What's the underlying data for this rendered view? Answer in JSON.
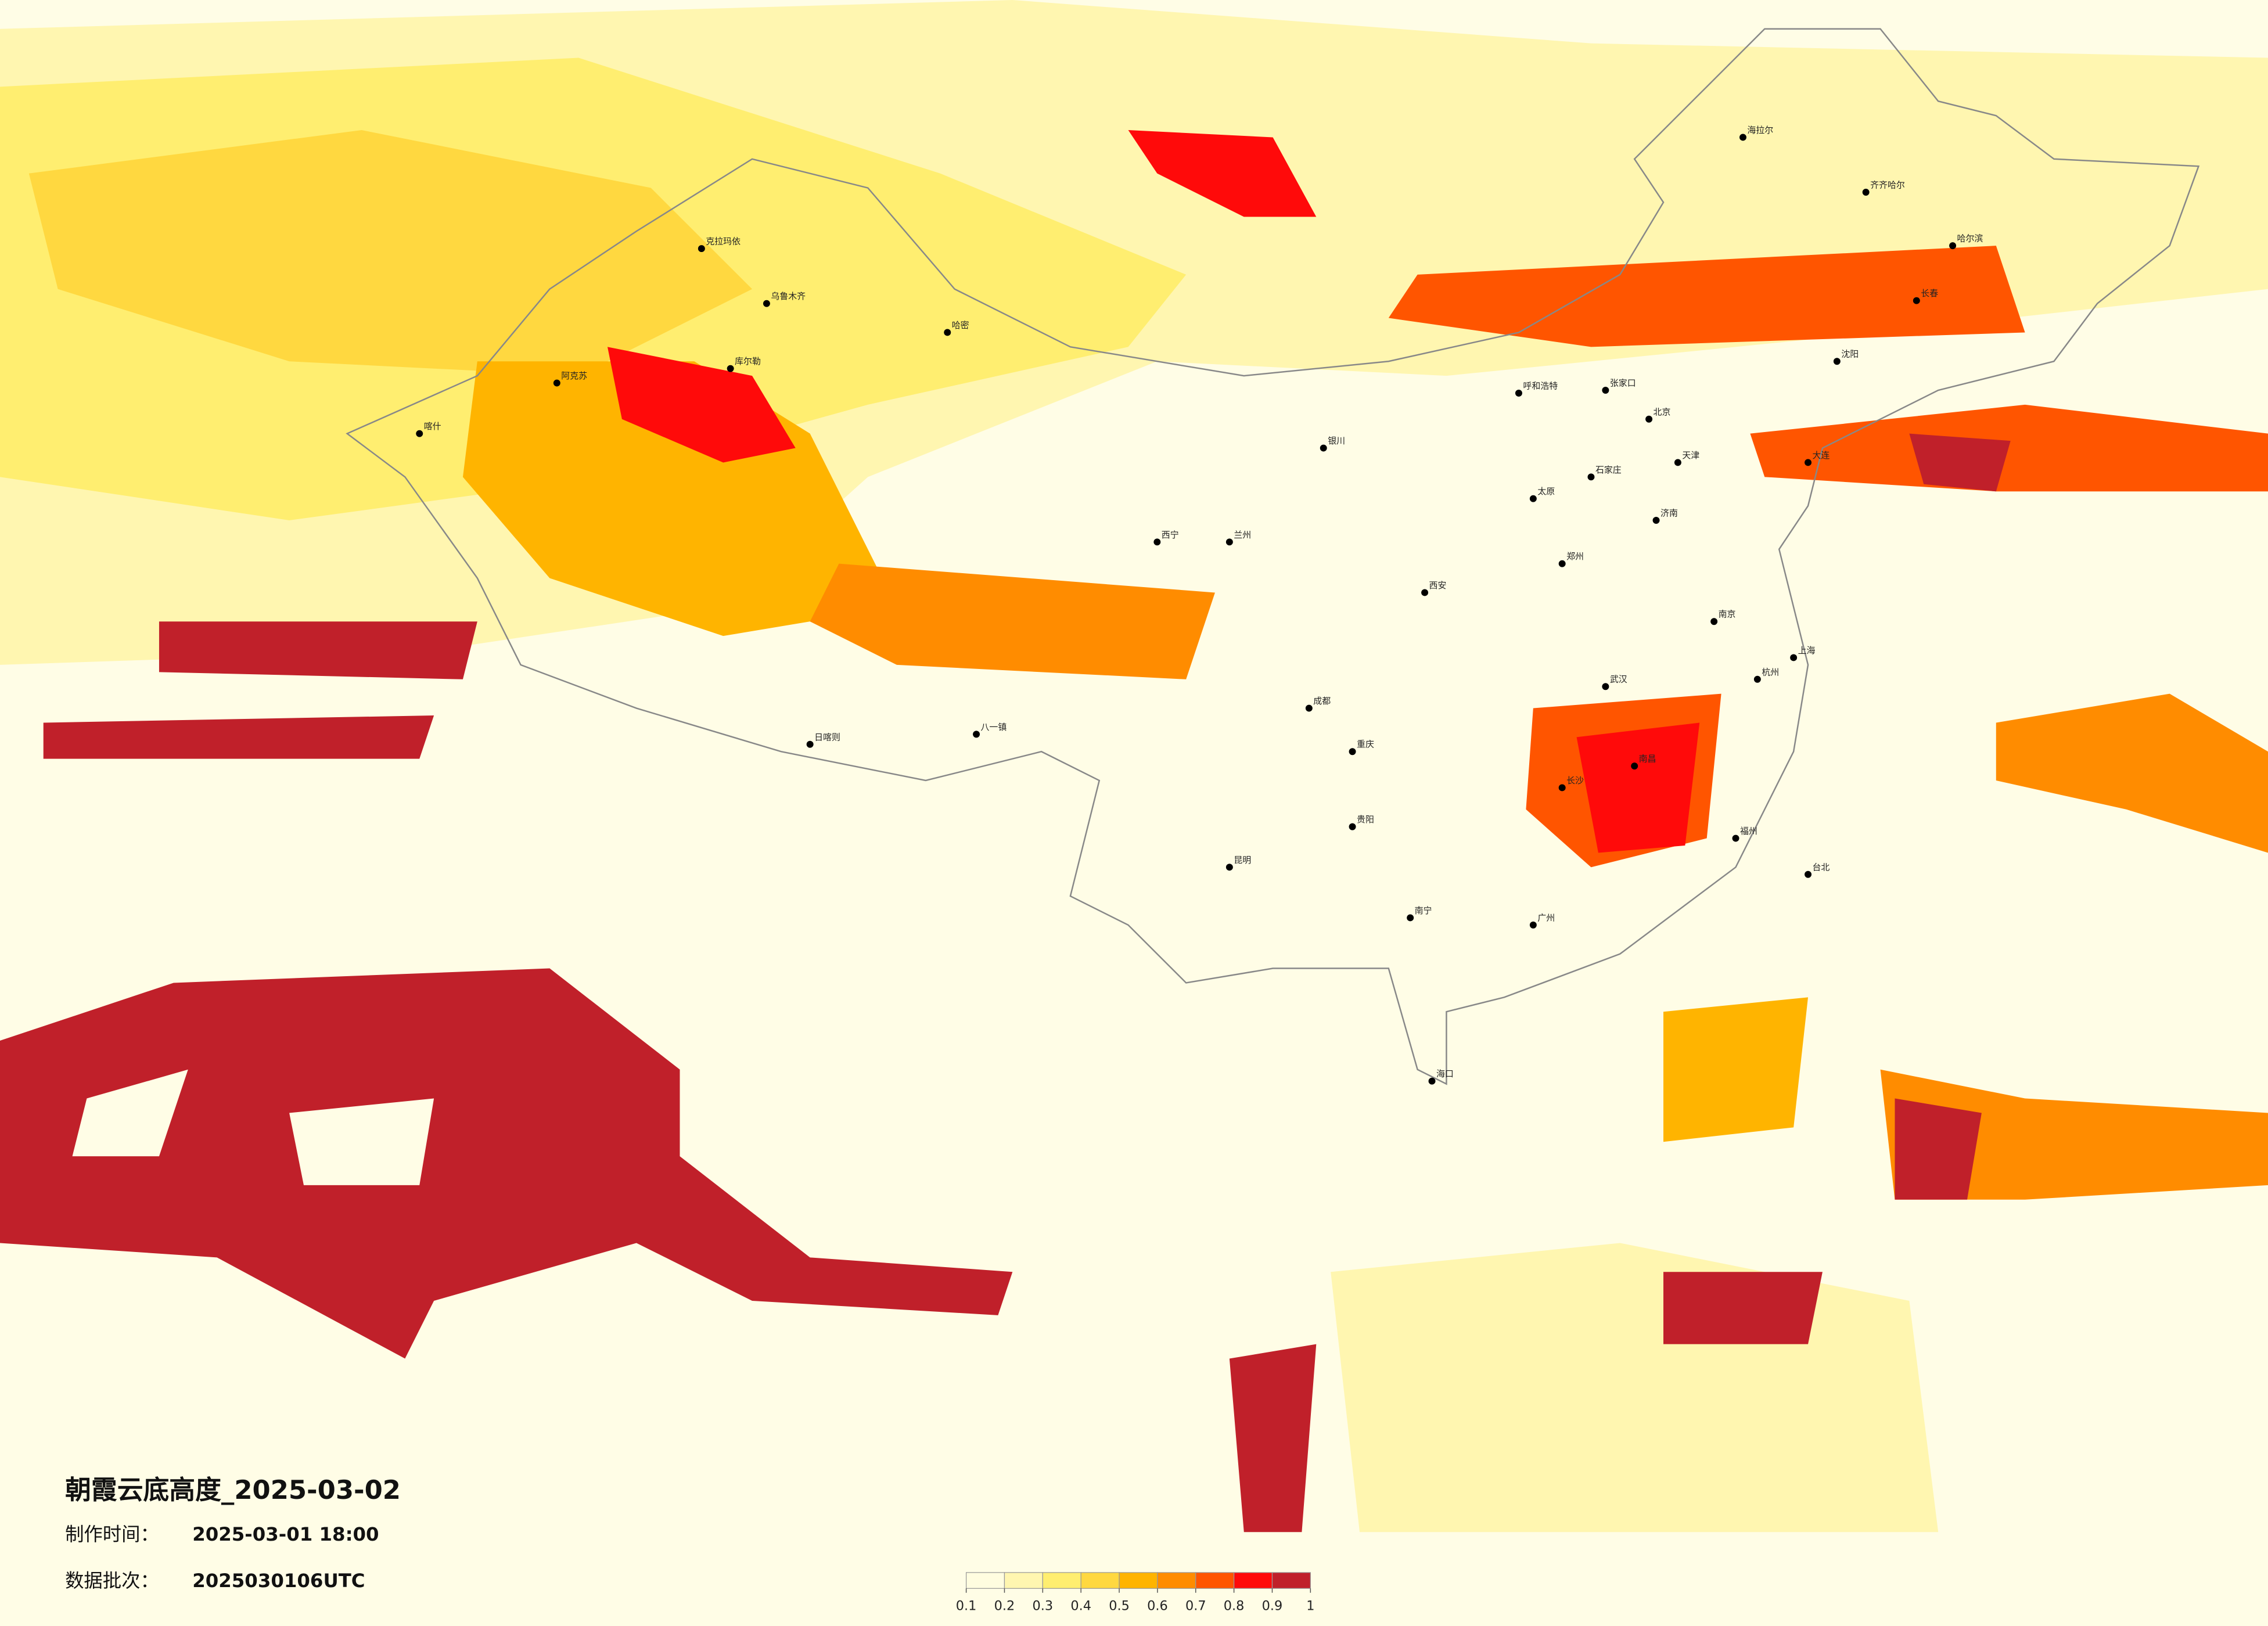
{
  "title": "朝霞云底高度_2025-03-02",
  "info": [
    {
      "label": "制作时间：",
      "value": "2025-03-01 18:00"
    },
    {
      "label": "数据批次：",
      "value": "2025030106UTC"
    }
  ],
  "colorbar": {
    "colors": [
      "#fffde0",
      "#fff6b0",
      "#ffee70",
      "#ffd840",
      "#ffb400",
      "#ff8c00",
      "#ff5500",
      "#ff0a0a",
      "#c0202a"
    ],
    "ticks": [
      0.1,
      0.2,
      0.3,
      0.4,
      0.5,
      0.6,
      0.7,
      0.8,
      0.9,
      1
    ]
  },
  "cities": [
    "海拉尔",
    "齐齐哈尔",
    "哈尔滨",
    "长春",
    "沈阳",
    "北京",
    "天津",
    "石家庄",
    "太原",
    "呼和浩特",
    "银川",
    "兰州",
    "西宁",
    "八一镇",
    "日喀则",
    "成都",
    "重庆",
    "贵阳",
    "昆明",
    "南宁",
    "广州",
    "长沙",
    "武汉",
    "南昌",
    "杭州",
    "南京",
    "上海",
    "福州",
    "台北",
    "郑州",
    "西安",
    "济南",
    "喀什",
    "阿克苏",
    "库尔勒",
    "海口",
    "大连",
    "张家口",
    "克拉玛依",
    "乌鲁木齐",
    "哈密"
  ]
}
